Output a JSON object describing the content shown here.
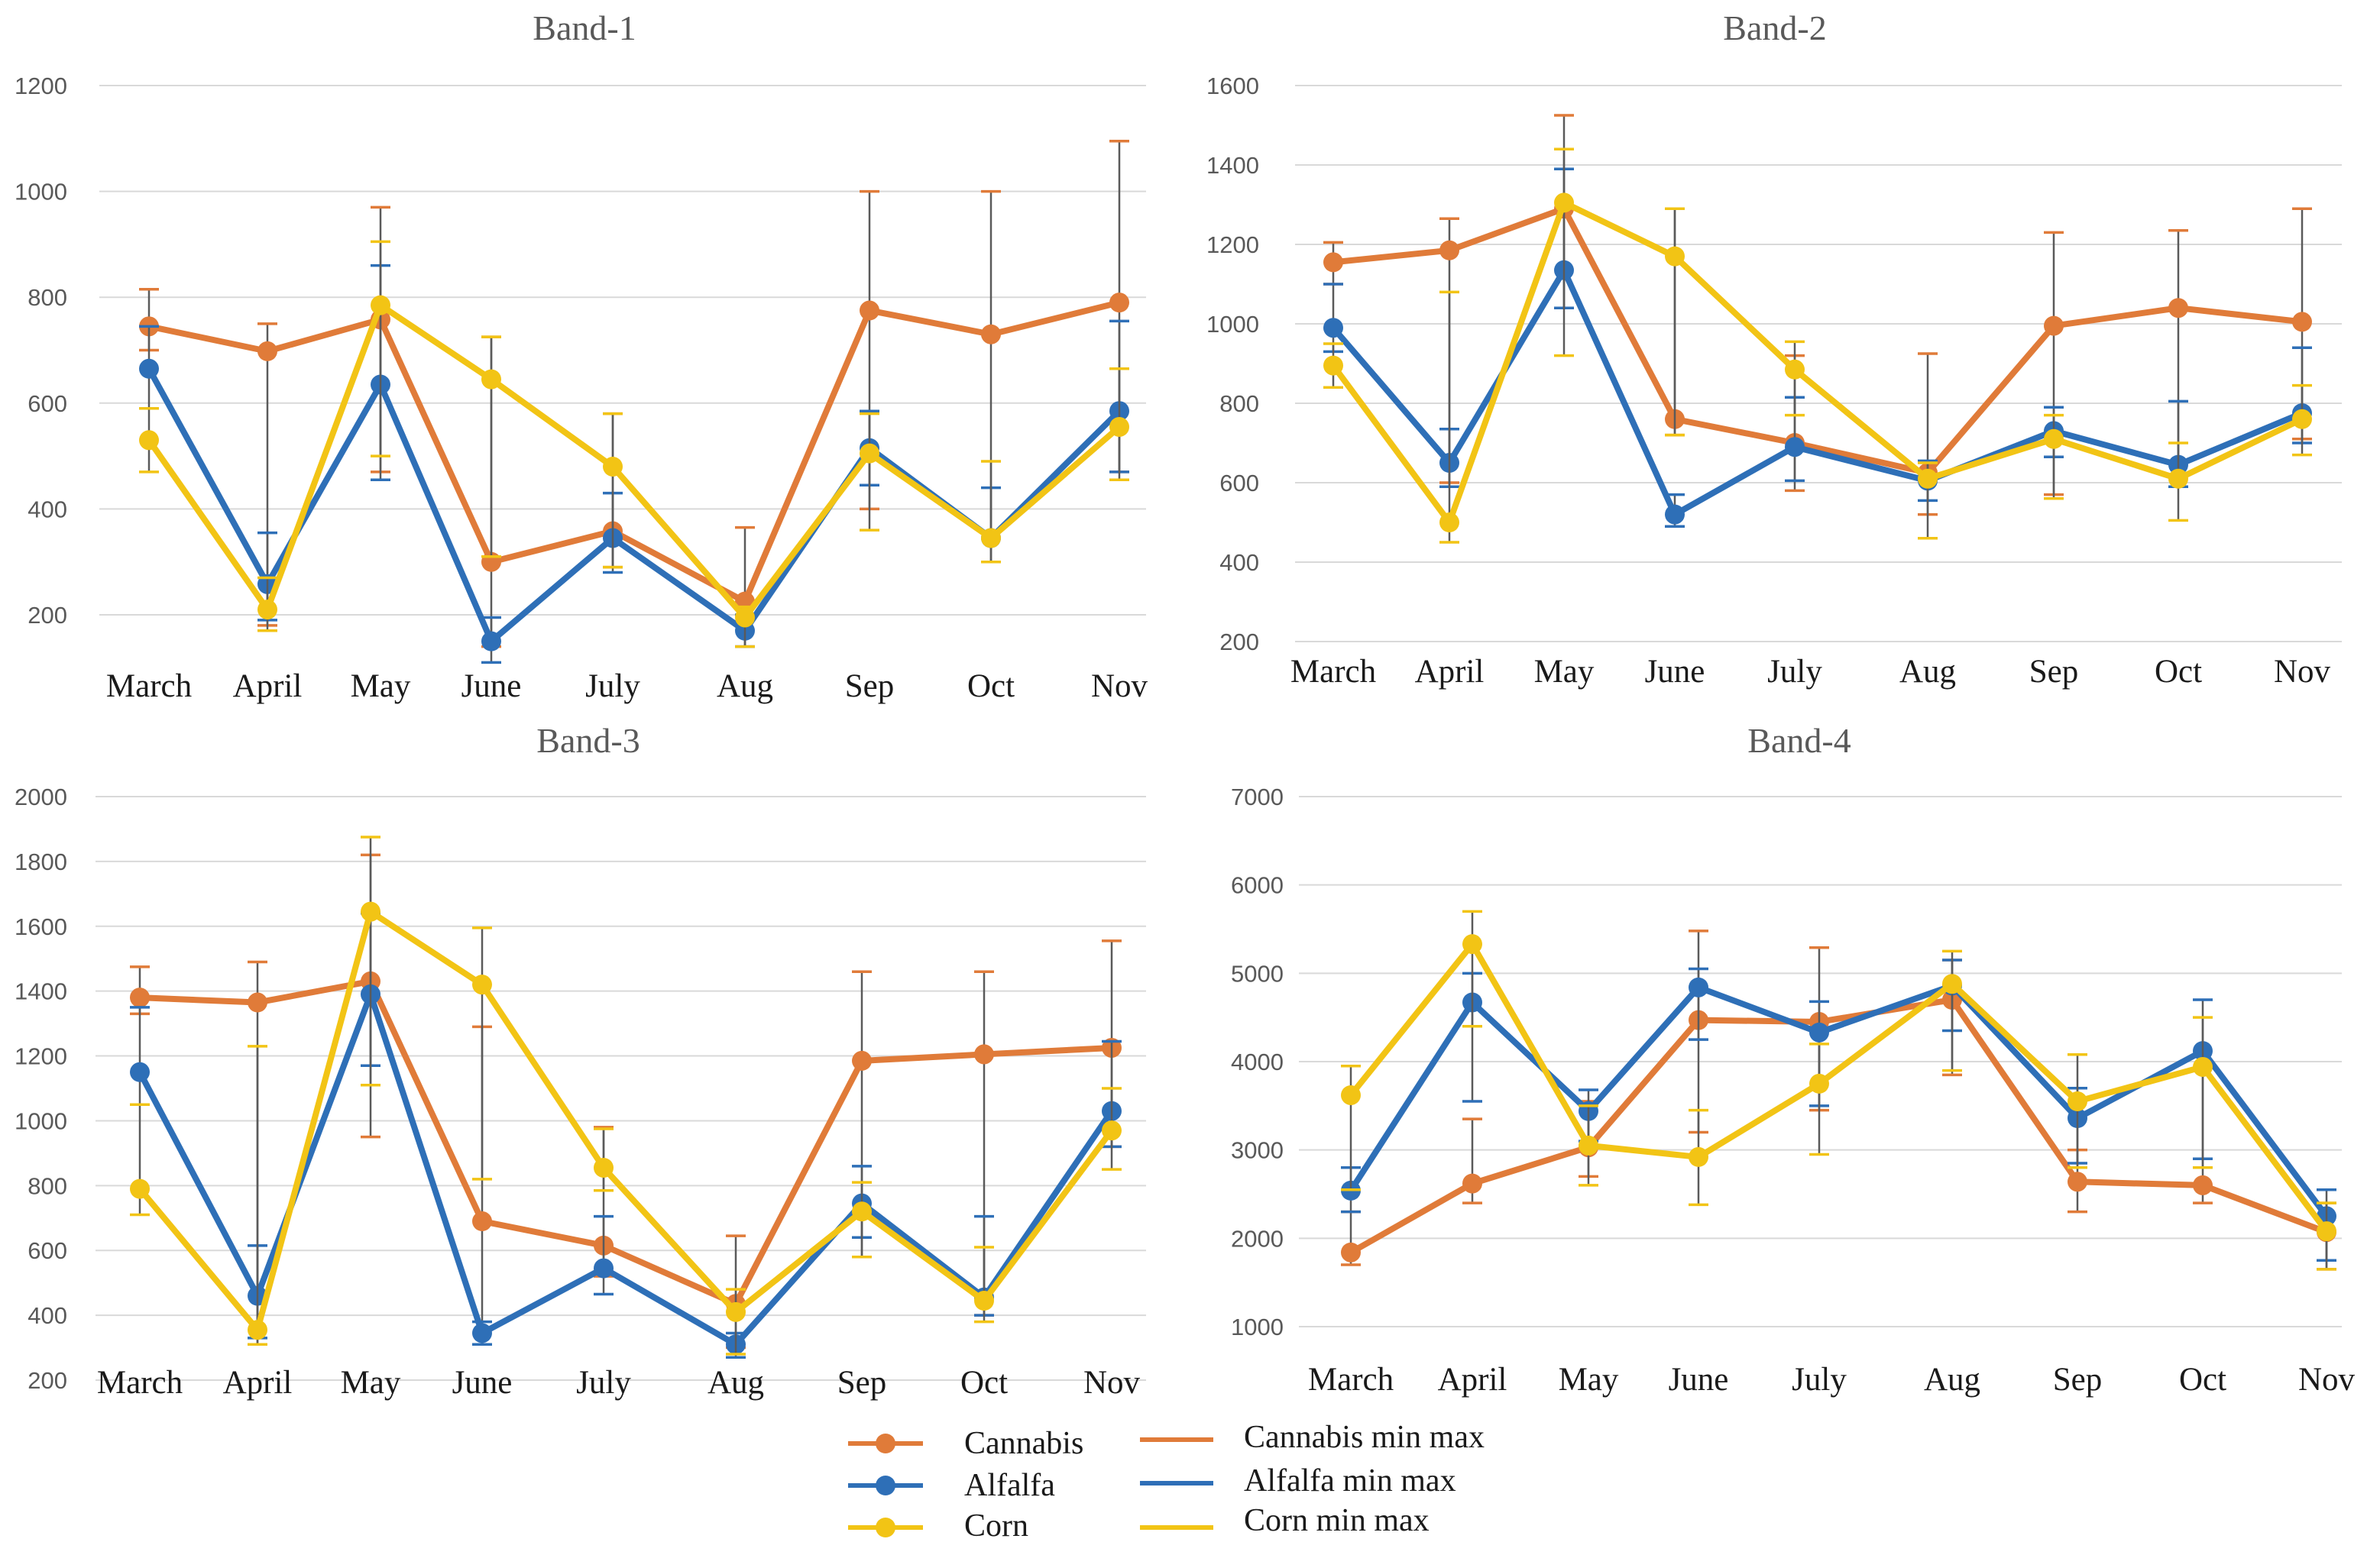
{
  "chart_data": [
    {
      "type": "line",
      "title": "Band-1",
      "categories": [
        "March",
        "April",
        "May",
        "June",
        "July",
        "Aug",
        "Sep",
        "Oct",
        "Nov"
      ],
      "ylim": [
        200,
        1200
      ],
      "yticks": [
        200,
        400,
        600,
        800,
        1000,
        1200
      ],
      "grid": true,
      "series": [
        {
          "name": "Cannabis",
          "values": [
            745,
            698,
            758,
            300,
            358,
            225,
            775,
            730,
            790
          ],
          "min": [
            700,
            180,
            470,
            140,
            290,
            140,
            400,
            300,
            470
          ],
          "max": [
            815,
            750,
            970,
            725,
            580,
            365,
            1000,
            1000,
            1095
          ]
        },
        {
          "name": "Alfalfa",
          "values": [
            665,
            258,
            635,
            150,
            345,
            170,
            515,
            345,
            585
          ],
          "min": [
            590,
            190,
            455,
            110,
            280,
            140,
            445,
            300,
            470
          ],
          "max": [
            745,
            355,
            860,
            195,
            430,
            200,
            585,
            440,
            755
          ]
        },
        {
          "name": "Corn",
          "values": [
            530,
            210,
            785,
            645,
            480,
            195,
            505,
            345,
            555
          ],
          "min": [
            470,
            170,
            500,
            310,
            290,
            140,
            360,
            300,
            455
          ],
          "max": [
            590,
            270,
            905,
            725,
            580,
            215,
            580,
            490,
            665
          ]
        }
      ]
    },
    {
      "type": "line",
      "title": "Band-2",
      "categories": [
        "March",
        "April",
        "May",
        "June",
        "July",
        "Aug",
        "Sep",
        "Oct",
        "Nov"
      ],
      "ylim": [
        200,
        1600
      ],
      "yticks": [
        200,
        400,
        600,
        800,
        1000,
        1200,
        1400,
        1600
      ],
      "grid": true,
      "series": [
        {
          "name": "Cannabis",
          "values": [
            1155,
            1185,
            1290,
            760,
            700,
            625,
            995,
            1040,
            1005
          ],
          "min": [
            1100,
            600,
            1040,
            720,
            580,
            520,
            570,
            590,
            710
          ],
          "max": [
            1205,
            1265,
            1525,
            1290,
            920,
            925,
            1230,
            1235,
            1290
          ]
        },
        {
          "name": "Alfalfa",
          "values": [
            990,
            650,
            1135,
            520,
            690,
            605,
            730,
            645,
            775
          ],
          "min": [
            930,
            590,
            1040,
            490,
            605,
            555,
            665,
            590,
            700
          ],
          "max": [
            1100,
            735,
            1390,
            570,
            815,
            655,
            790,
            805,
            940
          ]
        },
        {
          "name": "Corn",
          "values": [
            895,
            500,
            1305,
            1170,
            885,
            610,
            710,
            610,
            760
          ],
          "min": [
            840,
            450,
            920,
            720,
            770,
            460,
            560,
            505,
            670
          ],
          "max": [
            950,
            1080,
            1440,
            1290,
            955,
            650,
            770,
            700,
            845
          ]
        }
      ]
    },
    {
      "type": "line",
      "title": "Band-3",
      "categories": [
        "March",
        "April",
        "May",
        "June",
        "July",
        "Aug",
        "Sep",
        "Oct",
        "Nov"
      ],
      "ylim": [
        200,
        2000
      ],
      "yticks": [
        200,
        400,
        600,
        800,
        1000,
        1200,
        1400,
        1600,
        1800,
        2000
      ],
      "grid": true,
      "series": [
        {
          "name": "Cannabis",
          "values": [
            1380,
            1365,
            1430,
            690,
            615,
            435,
            1185,
            1205,
            1225
          ],
          "min": [
            1330,
            310,
            950,
            310,
            520,
            300,
            580,
            400,
            920
          ],
          "max": [
            1475,
            1490,
            1820,
            1290,
            980,
            645,
            1460,
            1460,
            1555
          ]
        },
        {
          "name": "Alfalfa",
          "values": [
            1150,
            460,
            1390,
            345,
            545,
            310,
            745,
            455,
            1030
          ],
          "min": [
            1050,
            330,
            1170,
            310,
            465,
            270,
            640,
            400,
            920
          ],
          "max": [
            1350,
            615,
            1640,
            380,
            705,
            345,
            860,
            705,
            1245
          ]
        },
        {
          "name": "Corn",
          "values": [
            790,
            355,
            1645,
            1420,
            855,
            410,
            720,
            445,
            970
          ],
          "min": [
            710,
            310,
            1110,
            820,
            785,
            280,
            580,
            380,
            850
          ],
          "max": [
            1050,
            1230,
            1875,
            1595,
            975,
            480,
            810,
            610,
            1100
          ]
        }
      ]
    },
    {
      "type": "line",
      "title": "Band-4",
      "categories": [
        "March",
        "April",
        "May",
        "June",
        "July",
        "Aug",
        "Sep",
        "Oct",
        "Nov"
      ],
      "ylim": [
        1000,
        7000
      ],
      "yticks": [
        1000,
        2000,
        3000,
        4000,
        5000,
        6000,
        7000
      ],
      "grid": true,
      "series": [
        {
          "name": "Cannabis",
          "values": [
            1840,
            2620,
            3030,
            4470,
            4450,
            4700,
            2640,
            2600,
            2070
          ],
          "min": [
            1700,
            2400,
            2700,
            3200,
            3450,
            3850,
            2300,
            2400,
            1650
          ],
          "max": [
            2300,
            3350,
            3550,
            5480,
            5290,
            5150,
            3000,
            2900,
            2400
          ]
        },
        {
          "name": "Alfalfa",
          "values": [
            2540,
            4670,
            3440,
            4840,
            4330,
            4860,
            3360,
            4120,
            2250
          ],
          "min": [
            2300,
            3550,
            3100,
            4250,
            3500,
            4350,
            2850,
            2900,
            1750
          ],
          "max": [
            2800,
            5000,
            3680,
            5050,
            4680,
            5150,
            3700,
            4700,
            2550
          ]
        },
        {
          "name": "Corn",
          "values": [
            3620,
            5330,
            3050,
            2920,
            3750,
            4880,
            3550,
            3940,
            2080
          ],
          "min": [
            2550,
            4400,
            2600,
            2380,
            2950,
            3900,
            2800,
            2800,
            1650
          ],
          "max": [
            3950,
            5700,
            3500,
            3450,
            4200,
            5250,
            4080,
            4500,
            2400
          ]
        }
      ]
    }
  ],
  "legend": {
    "markers": [
      {
        "label": "Cannabis",
        "color": "#E07B39"
      },
      {
        "label": "Alfalfa",
        "color": "#2E6FB7"
      },
      {
        "label": "Corn",
        "color": "#F2C415"
      }
    ],
    "lines": [
      {
        "label": "Cannabis min max",
        "color": "#E07B39"
      },
      {
        "label": "Alfalfa min max",
        "color": "#2E6FB7"
      },
      {
        "label": "Corn min max",
        "color": "#F2C415"
      }
    ]
  },
  "colors": {
    "Cannabis": "#E07B39",
    "Alfalfa": "#2E6FB7",
    "Corn": "#F2C415"
  }
}
